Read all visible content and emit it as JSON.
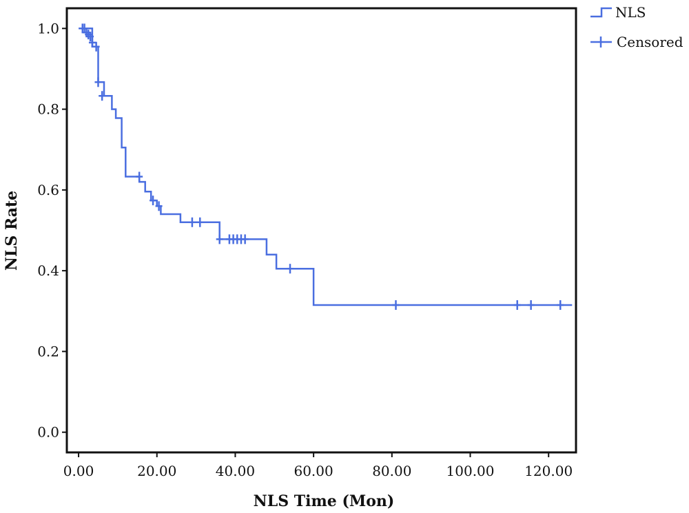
{
  "chart_data": {
    "type": "line",
    "subtype": "kaplan-meier step curve",
    "title": "",
    "xlabel": "NLS Time (Mon)",
    "ylabel": "NLS Rate",
    "xlim": [
      -3,
      127
    ],
    "ylim": [
      -0.05,
      1.05
    ],
    "xticks": [
      0,
      20,
      40,
      60,
      80,
      100,
      120
    ],
    "xtick_labels": [
      "0.00",
      "20.00",
      "40.00",
      "60.00",
      "80.00",
      "100.00",
      "120.00"
    ],
    "yticks": [
      0.0,
      0.2,
      0.4,
      0.6,
      0.8,
      1.0
    ],
    "ytick_labels": [
      "0.0",
      "0.2",
      "0.4",
      "0.6",
      "0.8",
      "1.0"
    ],
    "grid": false,
    "legend_position": "top-right, outside plot",
    "color": "#4a6ee0",
    "series": [
      {
        "name": "NLS",
        "x": [
          0,
          3.5,
          3.5,
          5,
          5,
          6.5,
          6.5,
          8.5,
          8.5,
          9.5,
          9.5,
          11,
          11,
          12,
          12,
          15.5,
          15.5,
          17,
          17,
          18.5,
          18.5,
          20,
          20,
          21,
          21,
          26,
          26,
          36,
          36,
          48,
          48,
          50.5,
          50.5,
          60,
          60,
          126
        ],
        "y": [
          1.0,
          1.0,
          0.955,
          0.955,
          0.867,
          0.867,
          0.833,
          0.833,
          0.8,
          0.8,
          0.778,
          0.778,
          0.705,
          0.705,
          0.633,
          0.633,
          0.62,
          0.62,
          0.596,
          0.596,
          0.574,
          0.574,
          0.56,
          0.56,
          0.54,
          0.54,
          0.52,
          0.52,
          0.478,
          0.478,
          0.44,
          0.44,
          0.405,
          0.405,
          0.315,
          0.315
        ]
      },
      {
        "name": "Censored",
        "marker": "+",
        "x": [
          1,
          1.5,
          2,
          2.5,
          3,
          3.5,
          4.5,
          5,
          6,
          15.5,
          19,
          20.5,
          29,
          31,
          36,
          38.5,
          39.5,
          40.5,
          41.5,
          42.5,
          54,
          81,
          112,
          115.5,
          123
        ],
        "y": [
          1.0,
          1.0,
          0.99,
          0.985,
          0.98,
          0.965,
          0.955,
          0.867,
          0.833,
          0.633,
          0.574,
          0.56,
          0.52,
          0.52,
          0.478,
          0.478,
          0.478,
          0.478,
          0.478,
          0.478,
          0.405,
          0.315,
          0.315,
          0.315,
          0.315
        ]
      }
    ]
  }
}
